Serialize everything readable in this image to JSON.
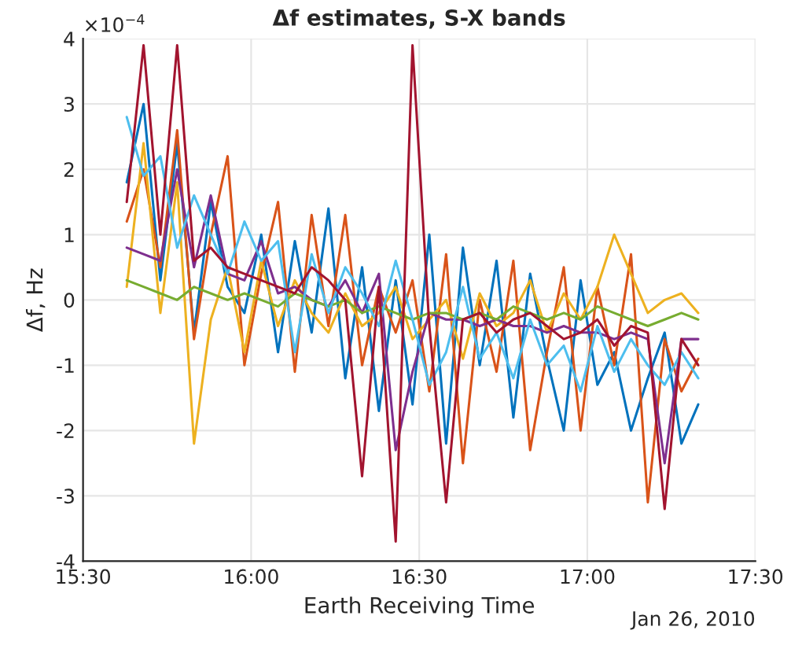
{
  "chart_data": {
    "type": "line",
    "title": "Δf estimates, S-X bands",
    "xlabel": "Earth Receiving Time",
    "ylabel": "Δf, Hz",
    "annotations": [
      "×10$^{−4}$",
      "Jan 26, 2010"
    ],
    "x": [
      15.63,
      15.68,
      15.73,
      15.78,
      15.83,
      15.88,
      15.93,
      15.98,
      16.03,
      16.08,
      16.13,
      16.18,
      16.23,
      16.28,
      16.33,
      16.38,
      16.43,
      16.48,
      16.53,
      16.58,
      16.63,
      16.68,
      16.73,
      16.78,
      16.83,
      16.88,
      16.93,
      16.98,
      17.03,
      17.08,
      17.13,
      17.18,
      17.23,
      17.28,
      17.33
    ],
    "xlim": [
      15.5,
      17.5
    ],
    "xticks": [
      {
        "value": 15.5,
        "label": "15:30"
      },
      {
        "value": 16.0,
        "label": "16:00"
      },
      {
        "value": 16.5,
        "label": "16:30"
      },
      {
        "value": 17.0,
        "label": "17:00"
      },
      {
        "value": 17.5,
        "label": "17:30"
      }
    ],
    "ylim": [
      -4,
      4
    ],
    "yticks": [
      -4,
      -3,
      -2,
      -1,
      0,
      1,
      2,
      3,
      4
    ],
    "grid": true,
    "legend": false,
    "series": [
      {
        "color": "#0072bd",
        "values": [
          1.8,
          3.0,
          0.3,
          2.4,
          -0.5,
          1.5,
          0.2,
          -0.2,
          1.0,
          -0.8,
          0.9,
          -0.5,
          1.4,
          -1.2,
          0.5,
          -1.7,
          0.3,
          -1.6,
          1.0,
          -2.2,
          0.8,
          -1.0,
          0.6,
          -1.8,
          0.4,
          -0.9,
          -2.0,
          0.3,
          -1.3,
          -0.8,
          -2.0,
          -1.2,
          -0.5,
          -2.2,
          -1.6
        ]
      },
      {
        "color": "#d95319",
        "values": [
          1.2,
          2.0,
          0.5,
          2.6,
          -0.6,
          1.0,
          2.2,
          -1.0,
          0.4,
          1.5,
          -1.1,
          1.3,
          -0.4,
          1.3,
          -1.0,
          0.2,
          -0.5,
          0.3,
          -1.4,
          0.7,
          -2.5,
          0.0,
          -1.1,
          0.6,
          -2.3,
          -0.8,
          0.5,
          -2.0,
          0.2,
          -1.0,
          0.7,
          -3.1,
          -0.6,
          -1.4,
          -0.9
        ]
      },
      {
        "color": "#edb120",
        "values": [
          0.2,
          2.4,
          -0.2,
          1.8,
          -2.2,
          -0.3,
          0.5,
          -0.8,
          0.6,
          -0.4,
          0.3,
          -0.2,
          -0.5,
          0.1,
          -0.4,
          -0.2,
          0.2,
          -0.6,
          -0.3,
          0.0,
          -0.9,
          0.1,
          -0.4,
          -0.2,
          0.3,
          -0.5,
          0.1,
          -0.3,
          0.2,
          1.0,
          0.4,
          -0.2,
          0.0,
          0.1,
          -0.2
        ]
      },
      {
        "color": "#7e2f8e",
        "values": [
          0.8,
          0.7,
          0.6,
          2.0,
          0.5,
          1.6,
          0.4,
          0.3,
          0.9,
          0.1,
          0.2,
          0.0,
          -0.1,
          0.3,
          -0.2,
          0.4,
          -2.3,
          -1.1,
          -0.2,
          -0.3,
          -0.3,
          -0.4,
          -0.3,
          -0.4,
          -0.4,
          -0.5,
          -0.4,
          -0.5,
          -0.5,
          -0.6,
          -0.5,
          -0.6,
          -2.5,
          -0.6,
          -0.6
        ]
      },
      {
        "color": "#77ac30",
        "values": [
          0.3,
          0.2,
          0.1,
          0.0,
          0.2,
          0.1,
          0.0,
          0.1,
          0.0,
          -0.1,
          0.1,
          0.0,
          -0.1,
          0.0,
          -0.2,
          -0.1,
          -0.2,
          -0.3,
          -0.2,
          -0.2,
          -0.3,
          -0.2,
          -0.3,
          -0.1,
          -0.2,
          -0.3,
          -0.2,
          -0.3,
          -0.1,
          -0.2,
          -0.3,
          -0.4,
          -0.3,
          -0.2,
          -0.3
        ]
      },
      {
        "color": "#4dbeee",
        "values": [
          2.8,
          1.9,
          2.2,
          0.8,
          1.6,
          1.0,
          0.4,
          1.2,
          0.6,
          0.9,
          -0.8,
          0.7,
          -0.2,
          0.5,
          0.1,
          -0.4,
          0.6,
          -0.3,
          -1.3,
          -0.8,
          0.2,
          -0.9,
          -0.5,
          -1.2,
          -0.3,
          -1.0,
          -0.7,
          -1.4,
          -0.4,
          -1.1,
          -0.6,
          -1.0,
          -1.3,
          -0.8,
          -1.2
        ]
      },
      {
        "color": "#a2142f",
        "values": [
          1.5,
          3.9,
          1.0,
          3.9,
          0.6,
          0.8,
          0.5,
          0.4,
          0.3,
          0.2,
          0.1,
          0.5,
          0.3,
          0.0,
          -2.7,
          0.2,
          -3.7,
          3.9,
          -0.4,
          -3.1,
          -0.3,
          -0.2,
          -0.5,
          -0.3,
          -0.2,
          -0.4,
          -0.6,
          -0.5,
          -0.3,
          -0.7,
          -0.4,
          -0.5,
          -3.2,
          -0.6,
          -1.0
        ]
      }
    ]
  }
}
